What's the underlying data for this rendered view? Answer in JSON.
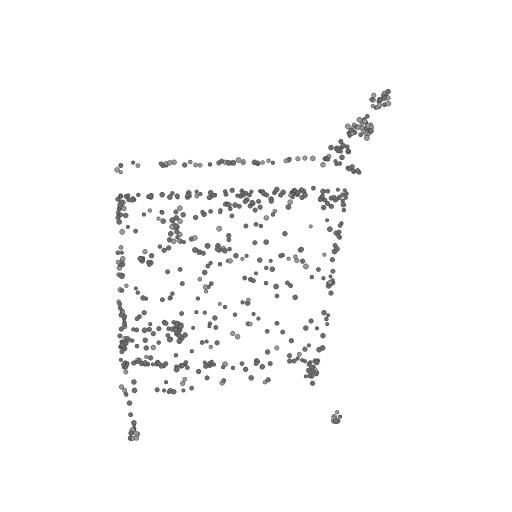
{
  "image": {
    "subject": "point-cloud-shopping-cart",
    "background_color": "#ffffff",
    "point_fill": "#6f6f6f",
    "point_stroke": "#3a3a3a",
    "point_highlight": "#9a9a9a"
  }
}
